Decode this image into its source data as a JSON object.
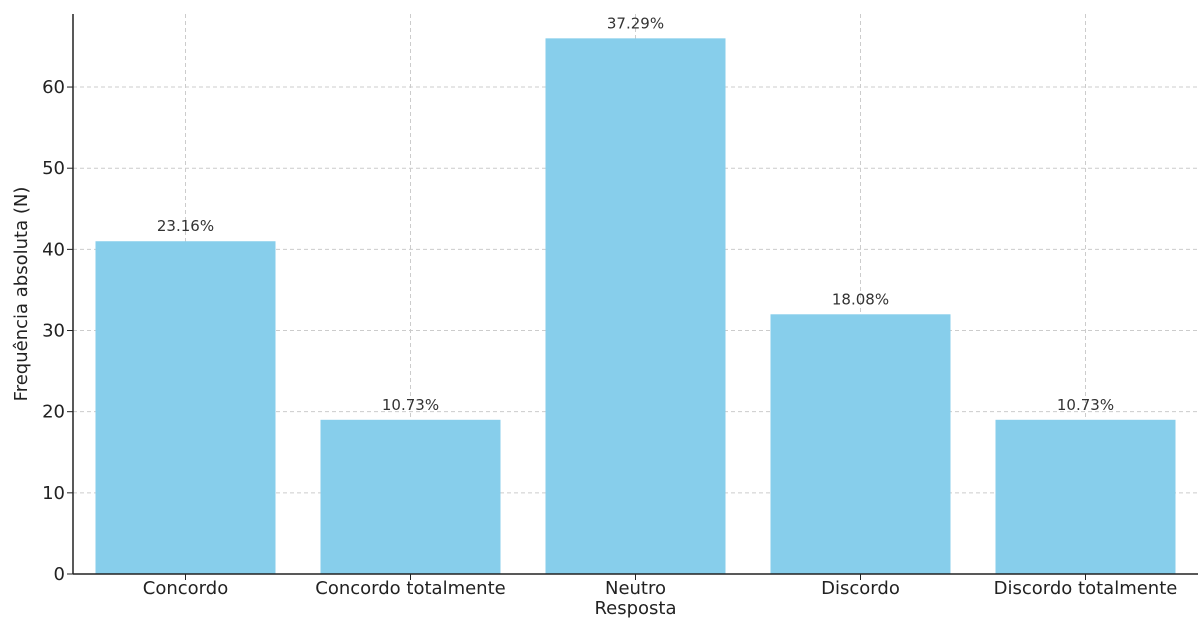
{
  "chart_data": {
    "type": "bar",
    "categories": [
      "Concordo",
      "Concordo totalmente",
      "Neutro",
      "Discordo",
      "Discordo totalmente"
    ],
    "values": [
      41,
      19,
      66,
      32,
      19
    ],
    "data_labels": [
      "23.16%",
      "10.73%",
      "37.29%",
      "18.08%",
      "10.73%"
    ],
    "xlabel": "Resposta",
    "ylabel": "Frequência absoluta (N)",
    "ylim": [
      0,
      69
    ],
    "yticks": [
      0,
      10,
      20,
      30,
      40,
      50,
      60
    ],
    "grid": true,
    "bar_color": "#87ceeb",
    "grid_color": "#cccccc",
    "axis_color": "#222222"
  }
}
